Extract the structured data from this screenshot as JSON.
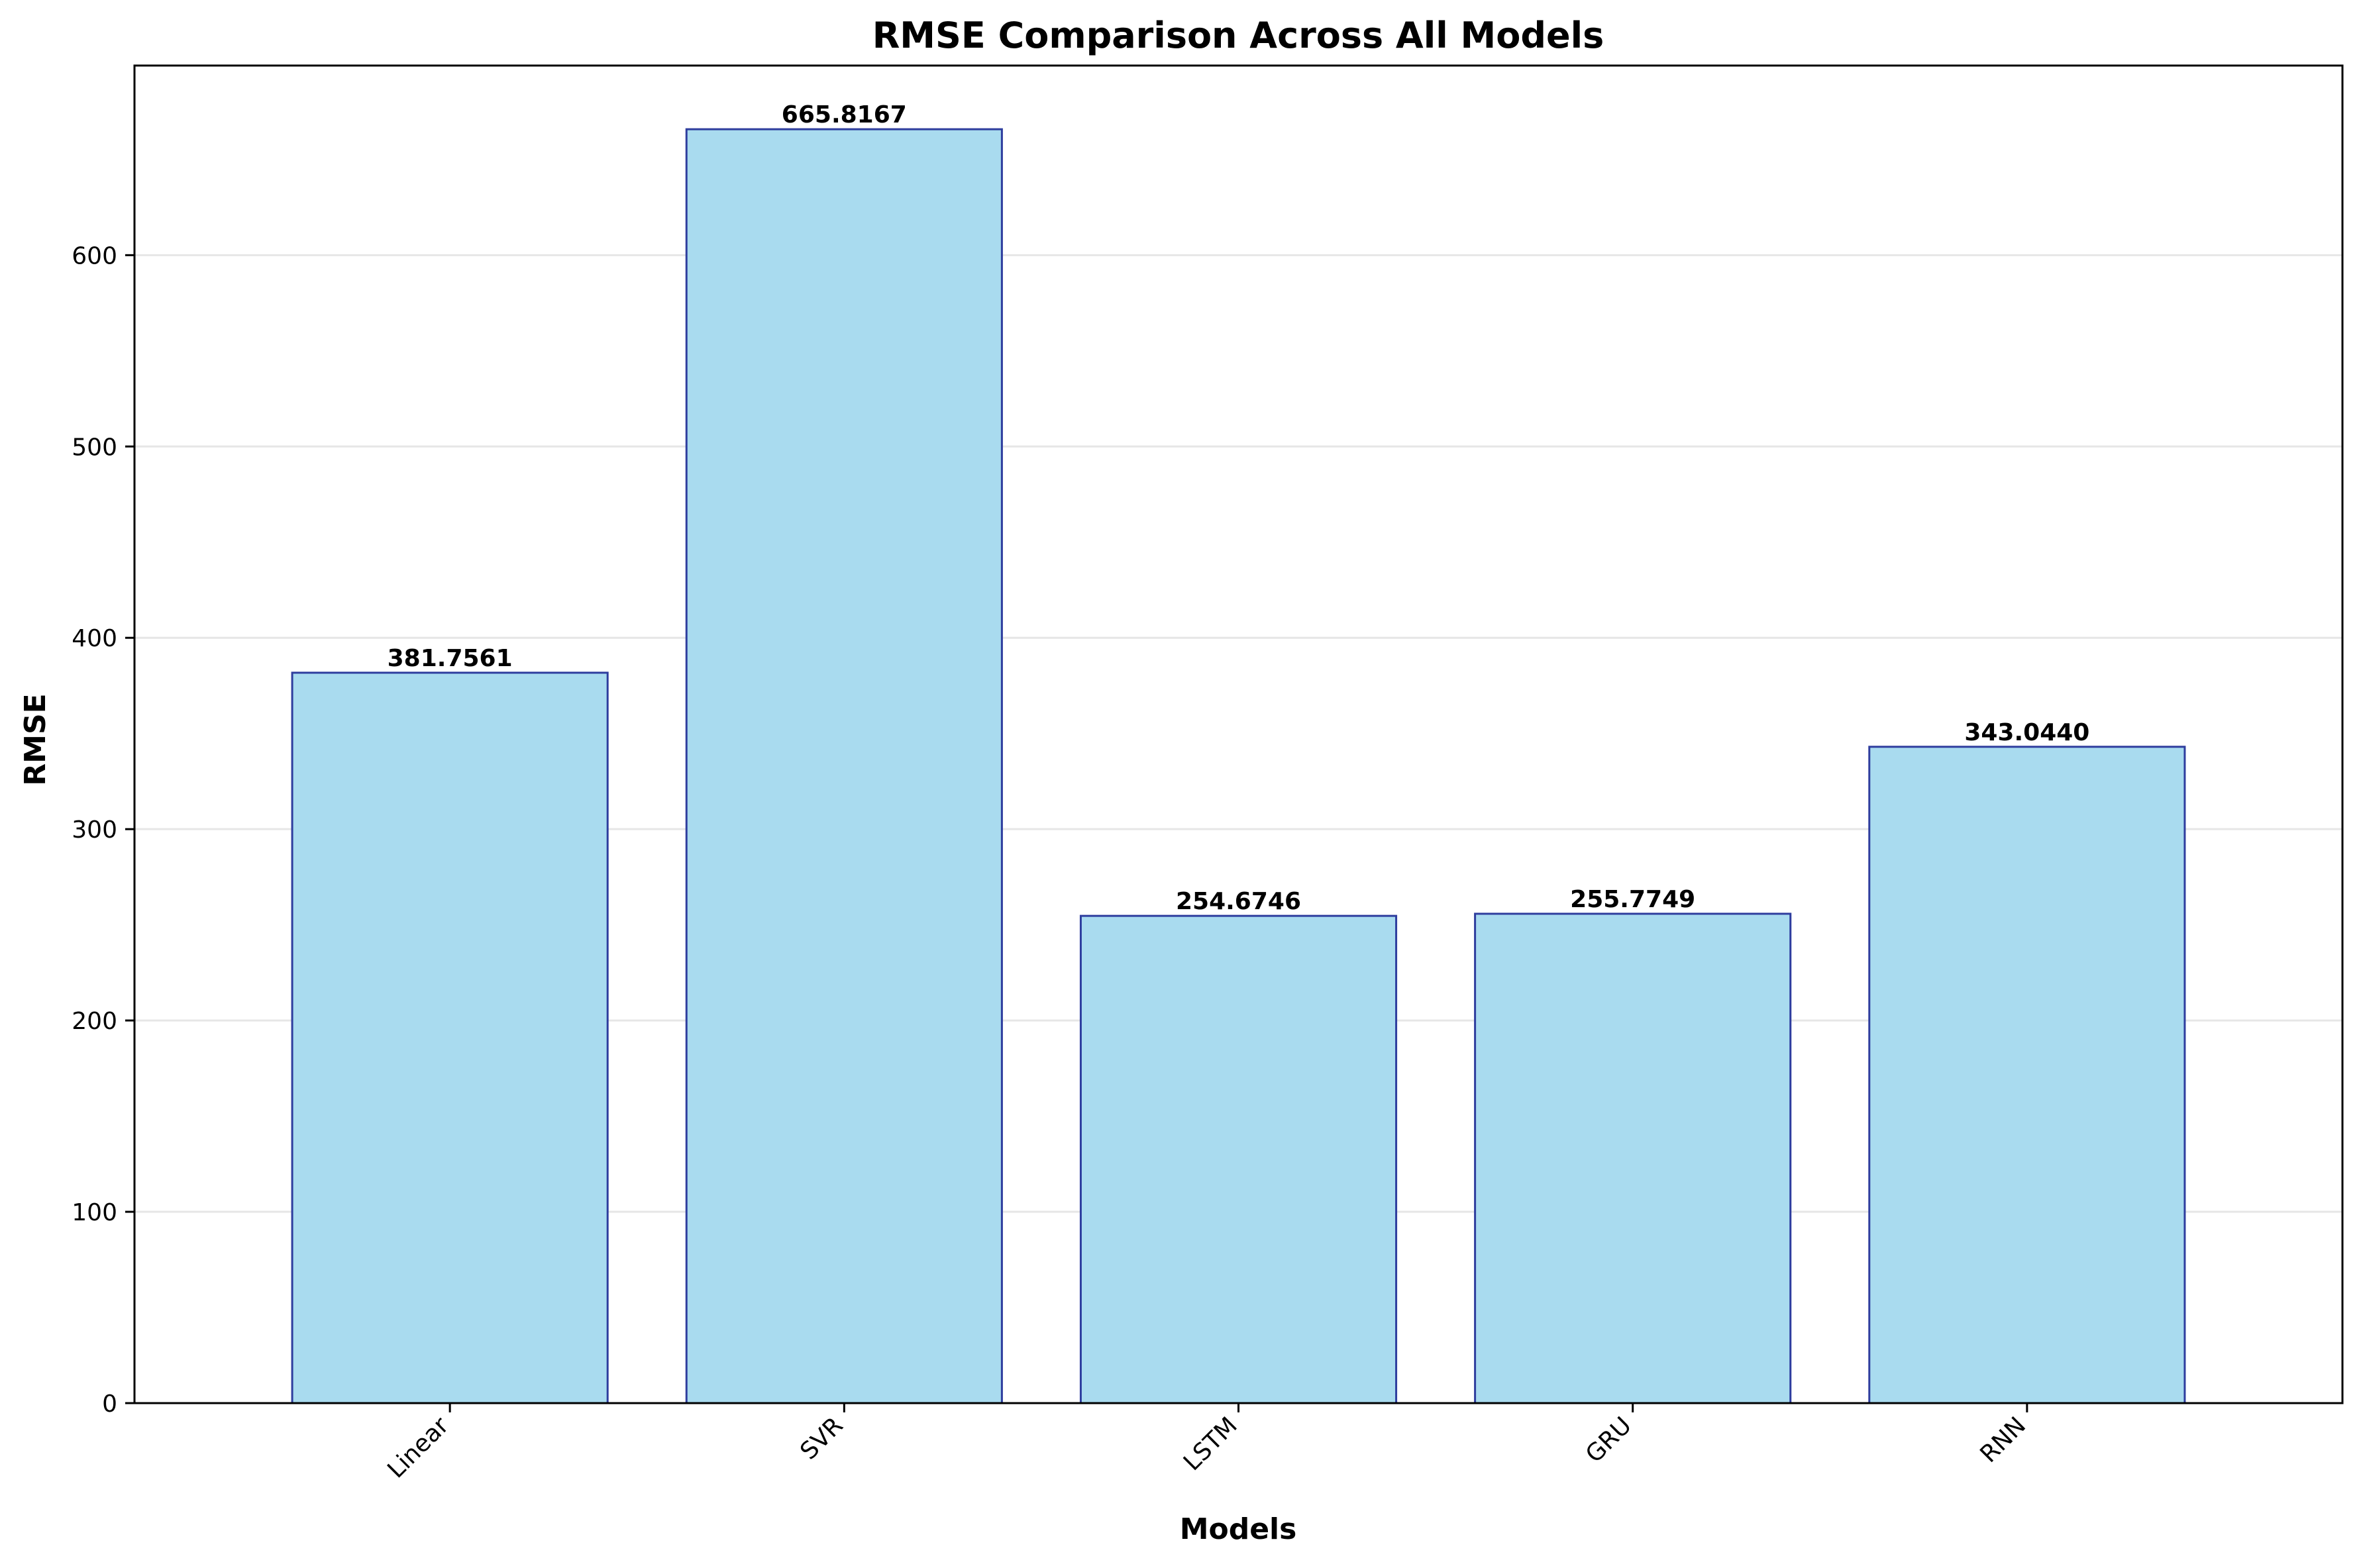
{
  "chart_data": {
    "type": "bar",
    "title": "RMSE Comparison Across All Models",
    "xlabel": "Models",
    "ylabel": "RMSE",
    "categories": [
      "Linear",
      "SVR",
      "LSTM",
      "GRU",
      "RNN"
    ],
    "values": [
      381.7561,
      665.8167,
      254.6746,
      255.7749,
      343.044
    ],
    "value_labels": [
      "381.7561",
      "665.8167",
      "254.6746",
      "255.7749",
      "343.0440"
    ],
    "ylim": [
      0,
      699.1
    ],
    "yticks": [
      0,
      100,
      200,
      300,
      400,
      500,
      600
    ],
    "grid": "horizontal",
    "bar_fill": "#a9dbef",
    "bar_edge": "#2e3d9e",
    "grid_color": "#e6e6e6"
  }
}
